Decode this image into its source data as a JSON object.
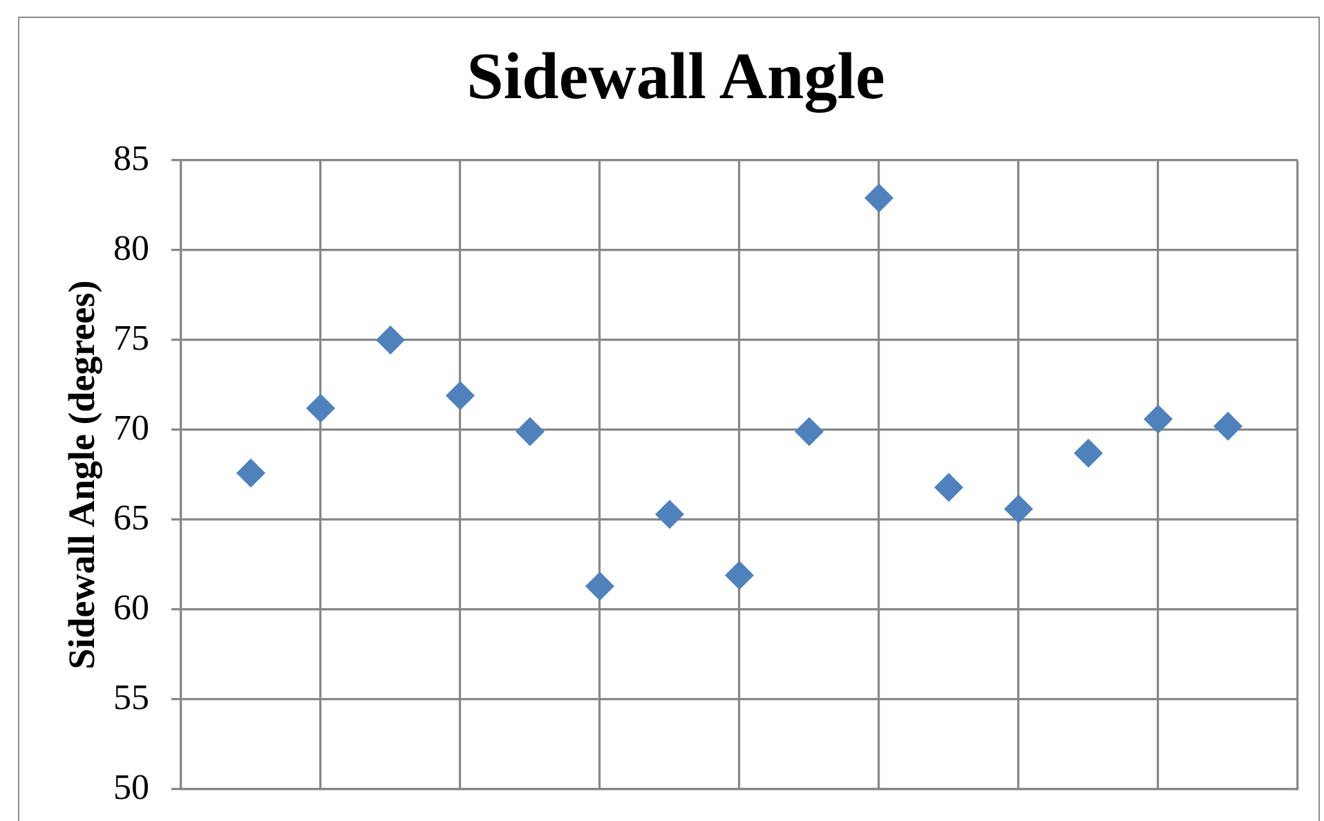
{
  "chart_data": {
    "type": "scatter",
    "title": "Sidewall Angle",
    "ylabel": "Sidewall Angle (degrees)",
    "categories": [
      null,
      null,
      null,
      null,
      null,
      null,
      null,
      null,
      null,
      null,
      null,
      null,
      null,
      null,
      null
    ],
    "values": [
      67.6,
      71.2,
      75.0,
      71.9,
      69.9,
      61.3,
      65.3,
      61.9,
      69.9,
      82.9,
      66.8,
      65.6,
      68.7,
      70.6,
      70.2
    ],
    "color": "#4f81bd",
    "marker": "diamond",
    "ylim": [
      50,
      85
    ],
    "yticks": [
      50,
      55,
      60,
      65,
      70,
      75,
      80,
      85
    ],
    "grid": true,
    "tick_labels": "y"
  }
}
